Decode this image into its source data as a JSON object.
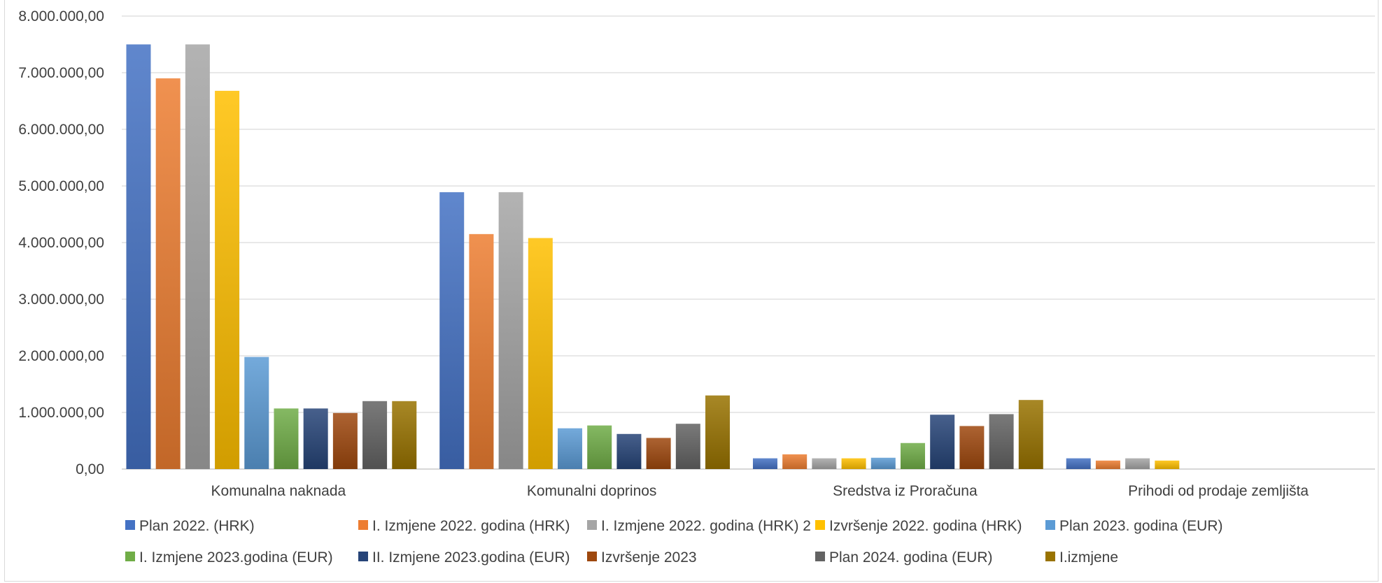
{
  "chart_data": {
    "type": "bar",
    "title": "",
    "xlabel": "",
    "ylabel": "",
    "ylim": [
      0,
      8000000
    ],
    "yticks": [
      0,
      1000000,
      2000000,
      3000000,
      4000000,
      5000000,
      6000000,
      7000000,
      8000000
    ],
    "ytick_labels": [
      "0,00",
      "1.000.000,00",
      "2.000.000,00",
      "3.000.000,00",
      "4.000.000,00",
      "5.000.000,00",
      "6.000.000,00",
      "7.000.000,00",
      "8.000.000,00"
    ],
    "grid": true,
    "legend_position": "bottom",
    "categories": [
      "Komunalna naknada",
      "Komunalni doprinos",
      "Sredstva iz Proračuna",
      "Prihodi od prodaje zemljišta"
    ],
    "series": [
      {
        "name": "Plan 2022. (HRK)",
        "color": "#4472c4",
        "values": [
          7500000,
          4890000,
          190000,
          190000
        ]
      },
      {
        "name": "I. Izmjene 2022. godina (HRK)",
        "color": "#ed7d31",
        "values": [
          6900000,
          4150000,
          260000,
          150000
        ]
      },
      {
        "name": "I. Izmjene 2022. godina (HRK) 2",
        "color": "#a5a5a5",
        "values": [
          7500000,
          4890000,
          190000,
          190000
        ]
      },
      {
        "name": "Izvršenje 2022. godina (HRK)",
        "color": "#ffc000",
        "values": [
          6680000,
          4080000,
          190000,
          150000
        ]
      },
      {
        "name": "Plan 2023. godina (EUR)",
        "color": "#5b9bd5",
        "values": [
          1980000,
          720000,
          200000,
          0
        ]
      },
      {
        "name": "I. Izmjene 2023.godina (EUR)",
        "color": "#70ad47",
        "values": [
          1070000,
          770000,
          460000,
          0
        ]
      },
      {
        "name": "II. Izmjene 2023.godina (EUR)",
        "color": "#264478",
        "values": [
          1070000,
          620000,
          960000,
          0
        ]
      },
      {
        "name": "Izvršenje 2023",
        "color": "#9e480e",
        "values": [
          990000,
          550000,
          760000,
          0
        ]
      },
      {
        "name": "Plan 2024. godina (EUR)",
        "color": "#636363",
        "values": [
          1200000,
          800000,
          970000,
          0
        ]
      },
      {
        "name": "I.izmjene",
        "color": "#997300",
        "values": [
          1200000,
          1300000,
          1220000,
          0
        ]
      }
    ]
  }
}
